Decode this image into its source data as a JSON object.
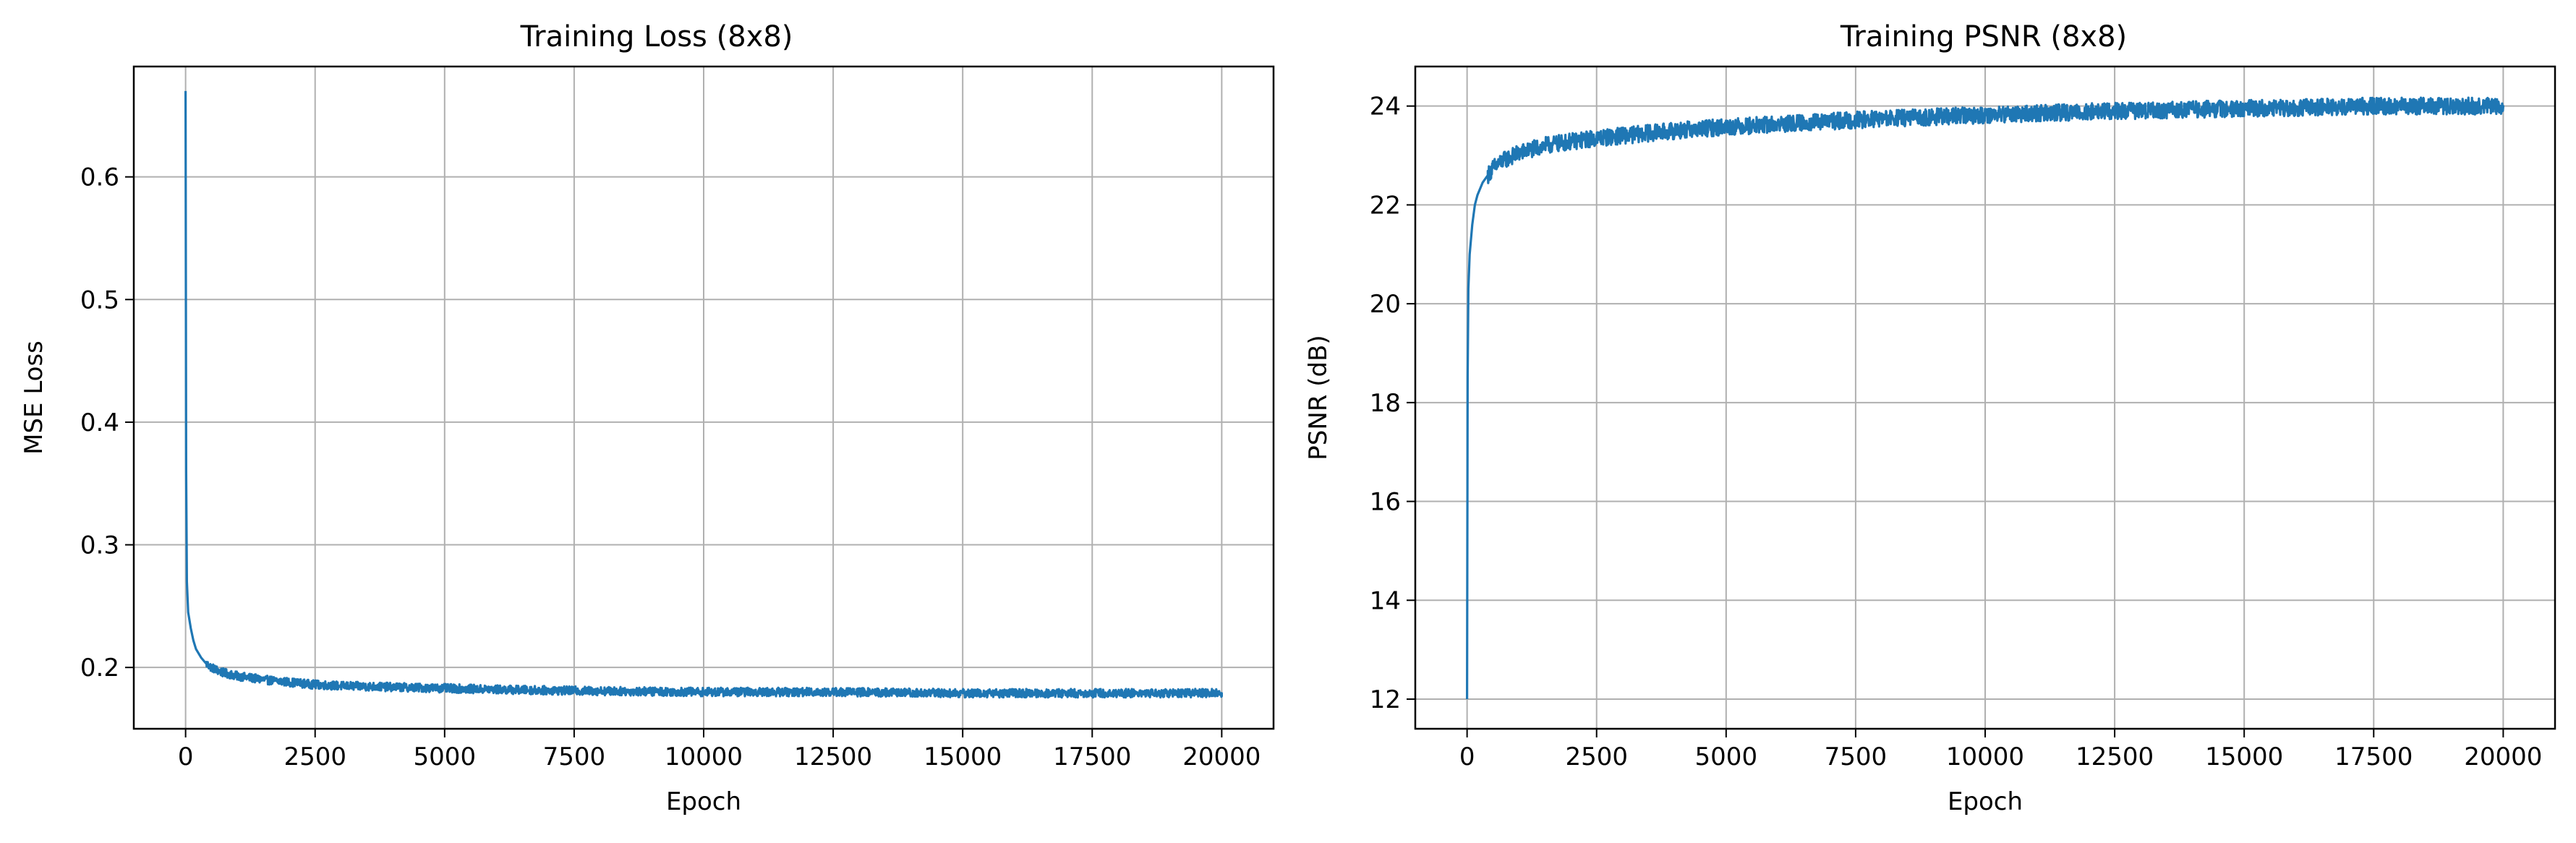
{
  "figure": {
    "background": "#ffffff",
    "line_color": "#1f77b4",
    "grid_color": "#b0b0b0"
  },
  "chart_data": [
    {
      "type": "line",
      "title": "Training Loss (8x8)",
      "xlabel": "Epoch",
      "ylabel": "MSE Loss",
      "xlim": [
        -1000,
        21000
      ],
      "ylim": [
        0.15,
        0.69
      ],
      "xticks": [
        0,
        2500,
        5000,
        7500,
        10000,
        12500,
        15000,
        17500,
        20000
      ],
      "xtick_labels": [
        "0",
        "2500",
        "5000",
        "7500",
        "10000",
        "12500",
        "15000",
        "17500",
        "20000"
      ],
      "yticks": [
        0.2,
        0.3,
        0.4,
        0.5,
        0.6
      ],
      "ytick_labels": [
        "0.2",
        "0.3",
        "0.4",
        "0.5",
        "0.6"
      ],
      "grid": true,
      "noise": 0.0035,
      "series": [
        {
          "color": "#1f77b4",
          "x": [
            0,
            10,
            25,
            50,
            100,
            150,
            200,
            300,
            400,
            500,
            700,
            1000,
            1500,
            2000,
            2500,
            3000,
            4000,
            5000,
            6000,
            7500,
            10000,
            12500,
            15000,
            17500,
            20000
          ],
          "y": [
            0.67,
            0.36,
            0.27,
            0.245,
            0.232,
            0.222,
            0.215,
            0.208,
            0.203,
            0.2,
            0.196,
            0.193,
            0.19,
            0.188,
            0.186,
            0.185,
            0.184,
            0.183,
            0.182,
            0.181,
            0.18,
            0.18,
            0.179,
            0.179,
            0.179
          ]
        }
      ]
    },
    {
      "type": "line",
      "title": "Training PSNR (8x8)",
      "xlabel": "Epoch",
      "ylabel": "PSNR (dB)",
      "xlim": [
        -1000,
        21000
      ],
      "ylim": [
        11.4,
        24.8
      ],
      "xticks": [
        0,
        2500,
        5000,
        7500,
        10000,
        12500,
        15000,
        17500,
        20000
      ],
      "xtick_labels": [
        "0",
        "2500",
        "5000",
        "7500",
        "10000",
        "12500",
        "15000",
        "17500",
        "20000"
      ],
      "yticks": [
        12,
        14,
        16,
        18,
        20,
        22,
        24
      ],
      "ytick_labels": [
        "12",
        "14",
        "16",
        "18",
        "20",
        "22",
        "24"
      ],
      "grid": true,
      "noise": 0.17,
      "series": [
        {
          "color": "#1f77b4",
          "x": [
            0,
            10,
            25,
            50,
            100,
            150,
            200,
            300,
            400,
            500,
            700,
            1000,
            1500,
            2000,
            2500,
            3000,
            4000,
            5000,
            6000,
            7500,
            10000,
            12500,
            15000,
            17500,
            20000
          ],
          "y": [
            12.0,
            18.5,
            20.3,
            21.0,
            21.6,
            22.0,
            22.2,
            22.45,
            22.6,
            22.75,
            22.9,
            23.05,
            23.2,
            23.28,
            23.35,
            23.4,
            23.5,
            23.58,
            23.63,
            23.72,
            23.82,
            23.9,
            23.95,
            24.0,
            24.0
          ]
        }
      ]
    }
  ]
}
